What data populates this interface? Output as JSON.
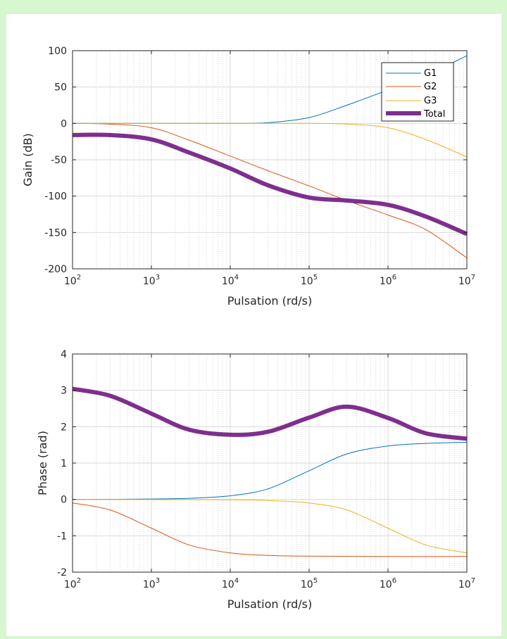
{
  "colors": {
    "frame_border": "#d6f7cf",
    "G1": "#0072bd",
    "G2": "#d95319",
    "G3": "#edb120",
    "Total": "#7e2f8e"
  },
  "chart_data": [
    {
      "type": "line",
      "xscale": "log",
      "xlabel": "Pulsation (rd/s)",
      "ylabel": "Gain (dB)",
      "xlim": [
        100,
        10000000
      ],
      "ylim": [
        -200,
        100
      ],
      "yticks": [
        100,
        50,
        0,
        -50,
        -100,
        -150,
        -200
      ],
      "xticks": [
        {
          "base": "10",
          "exp": "2"
        },
        {
          "base": "10",
          "exp": "3"
        },
        {
          "base": "10",
          "exp": "4"
        },
        {
          "base": "10",
          "exp": "5"
        },
        {
          "base": "10",
          "exp": "6"
        },
        {
          "base": "10",
          "exp": "7"
        }
      ],
      "grid": true,
      "legend": "top-right",
      "series": [
        {
          "name": "G1",
          "x": [
            100,
            1000,
            3000,
            10000,
            30000,
            100000,
            300000,
            1000000,
            3000000,
            10000000
          ],
          "y": [
            0,
            0,
            0,
            0,
            1,
            8,
            25,
            46,
            66,
            93
          ]
        },
        {
          "name": "G2",
          "x": [
            100,
            300,
            1000,
            3000,
            10000,
            30000,
            100000,
            300000,
            1000000,
            3000000,
            10000000
          ],
          "y": [
            0,
            -1,
            -6,
            -23,
            -45,
            -65,
            -86,
            -106,
            -126,
            -146,
            -185
          ]
        },
        {
          "name": "G3",
          "x": [
            100,
            1000,
            10000,
            100000,
            300000,
            1000000,
            3000000,
            10000000
          ],
          "y": [
            0,
            0,
            0,
            0,
            -1,
            -6,
            -22,
            -46
          ]
        },
        {
          "name": "Total",
          "x": [
            100,
            300,
            1000,
            3000,
            10000,
            30000,
            100000,
            300000,
            1000000,
            3000000,
            10000000
          ],
          "y": [
            -16,
            -16,
            -22,
            -40,
            -62,
            -85,
            -102,
            -106,
            -112,
            -128,
            -152
          ]
        }
      ]
    },
    {
      "type": "line",
      "xscale": "log",
      "xlabel": "Pulsation (rd/s)",
      "ylabel": "Phase (rad)",
      "xlim": [
        100,
        10000000
      ],
      "ylim": [
        -2,
        4
      ],
      "yticks": [
        4,
        3,
        2,
        1,
        0,
        -1,
        -2
      ],
      "xticks": [
        {
          "base": "10",
          "exp": "2"
        },
        {
          "base": "10",
          "exp": "3"
        },
        {
          "base": "10",
          "exp": "4"
        },
        {
          "base": "10",
          "exp": "5"
        },
        {
          "base": "10",
          "exp": "6"
        },
        {
          "base": "10",
          "exp": "7"
        }
      ],
      "grid": true,
      "series": [
        {
          "name": "G1",
          "x": [
            100,
            1000,
            3000,
            10000,
            30000,
            100000,
            300000,
            1000000,
            3000000,
            10000000
          ],
          "y": [
            0,
            0.01,
            0.03,
            0.1,
            0.29,
            0.79,
            1.25,
            1.47,
            1.54,
            1.57
          ]
        },
        {
          "name": "G2",
          "x": [
            100,
            300,
            1000,
            3000,
            10000,
            30000,
            100000,
            1000000,
            10000000
          ],
          "y": [
            -0.1,
            -0.29,
            -0.79,
            -1.25,
            -1.47,
            -1.54,
            -1.56,
            -1.57,
            -1.57
          ]
        },
        {
          "name": "G3",
          "x": [
            100,
            10000,
            30000,
            100000,
            300000,
            1000000,
            3000000,
            10000000
          ],
          "y": [
            0,
            -0.01,
            -0.03,
            -0.1,
            -0.29,
            -0.79,
            -1.25,
            -1.47
          ]
        },
        {
          "name": "Total",
          "x": [
            100,
            300,
            1000,
            3000,
            10000,
            30000,
            100000,
            300000,
            1000000,
            3000000,
            10000000
          ],
          "y": [
            3.04,
            2.85,
            2.36,
            1.92,
            1.78,
            1.86,
            2.25,
            2.55,
            2.24,
            1.82,
            1.67
          ]
        }
      ]
    }
  ]
}
